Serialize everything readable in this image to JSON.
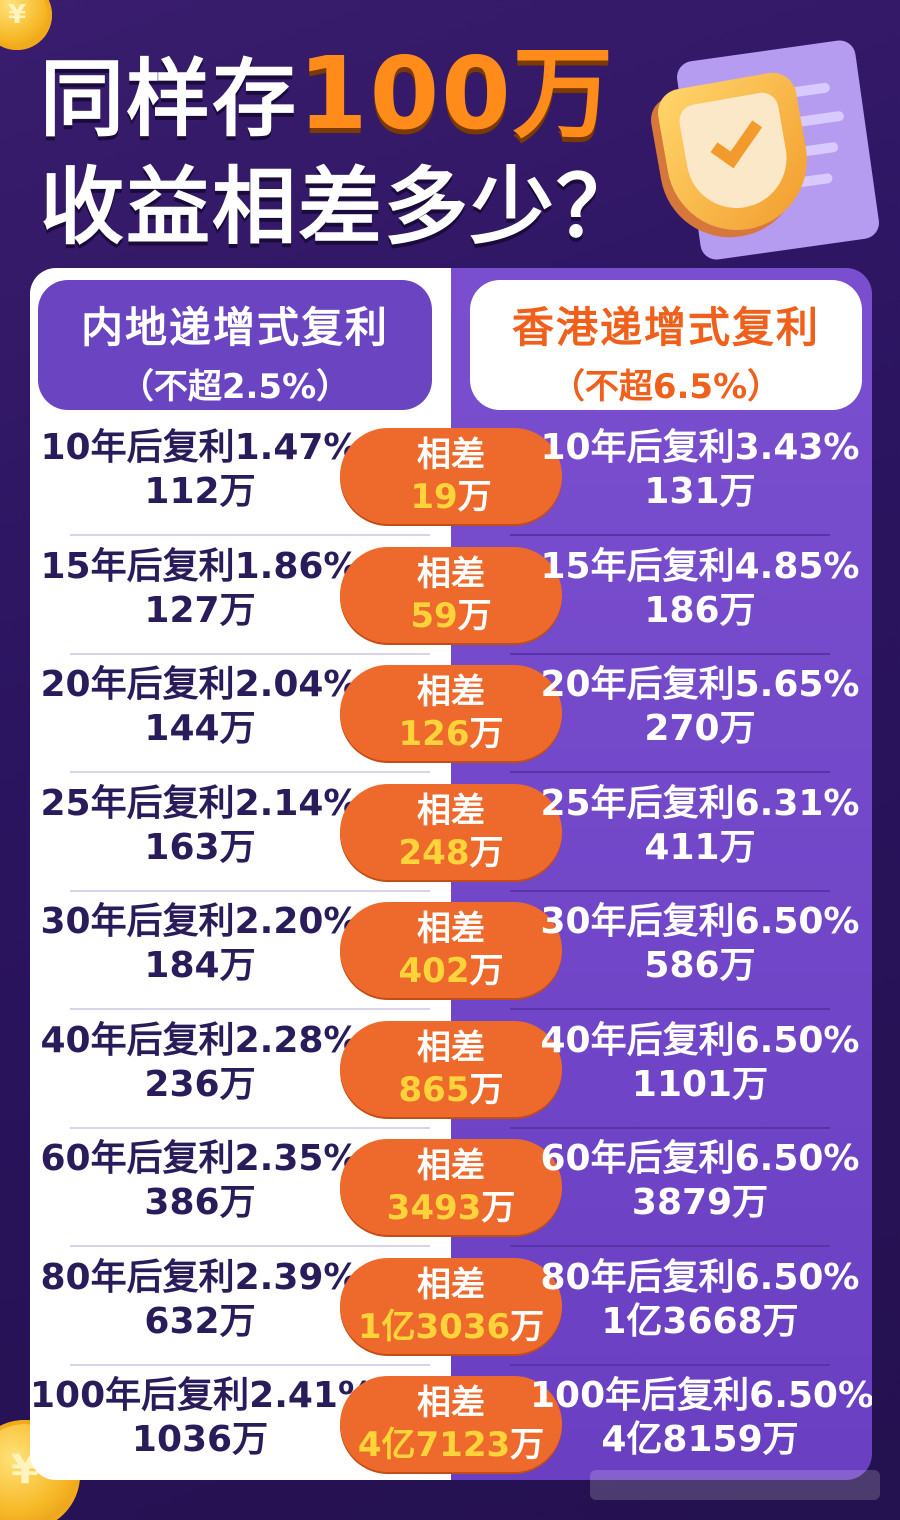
{
  "title": {
    "line1_prefix": "同样存",
    "line1_highlight": "100万",
    "line2": "收益相差多少？"
  },
  "left_header": {
    "title": "内地递增式复利",
    "subtitle": "（不超2.5%）"
  },
  "right_header": {
    "title": "香港递增式复利",
    "subtitle": "（不超6.5%）"
  },
  "diff_label": "相差",
  "unit": "万",
  "rows": [
    {
      "left_rate": "10年后复利1.47%",
      "left_amount": "112万",
      "diff_value": "19",
      "right_rate": "10年后复利3.43%",
      "right_amount": "131万"
    },
    {
      "left_rate": "15年后复利1.86%",
      "left_amount": "127万",
      "diff_value": "59",
      "right_rate": "15年后复利4.85%",
      "right_amount": "186万"
    },
    {
      "left_rate": "20年后复利2.04%",
      "left_amount": "144万",
      "diff_value": "126",
      "right_rate": "20年后复利5.65%",
      "right_amount": "270万"
    },
    {
      "left_rate": "25年后复利2.14%",
      "left_amount": "163万",
      "diff_value": "248",
      "right_rate": "25年后复利6.31%",
      "right_amount": "411万"
    },
    {
      "left_rate": "30年后复利2.20%",
      "left_amount": "184万",
      "diff_value": "402",
      "right_rate": "30年后复利6.50%",
      "right_amount": "586万"
    },
    {
      "left_rate": "40年后复利2.28%",
      "left_amount": "236万",
      "diff_value": "865",
      "right_rate": "40年后复利6.50%",
      "right_amount": "1101万"
    },
    {
      "left_rate": "60年后复利2.35%",
      "left_amount": "386万",
      "diff_value": "3493",
      "right_rate": "60年后复利6.50%",
      "right_amount": "3879万"
    },
    {
      "left_rate": "80年后复利2.39%",
      "left_amount": "632万",
      "diff_value": "1亿3036",
      "right_rate": "80年后复利6.50%",
      "right_amount": "1亿3668万"
    },
    {
      "left_rate": "100年后复利2.41%",
      "left_amount": "1036万",
      "diff_value": "4亿7123",
      "right_rate": "100年后复利6.50%",
      "right_amount": "4亿8159万"
    }
  ],
  "coin_symbol": "¥",
  "colors": {
    "background": "#2b1460",
    "accent_orange": "#ee6a2c",
    "highlight_yellow": "#ffd43a",
    "panel_purple": "#6a3fc2"
  },
  "icons": [
    "coin-icon",
    "shield-check-icon",
    "scroll-icon"
  ]
}
